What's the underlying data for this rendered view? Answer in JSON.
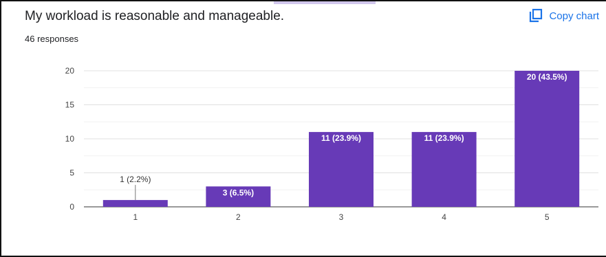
{
  "question": "My workload is reasonable and manageable.",
  "responses": "46 responses",
  "copy_chart": "Copy chart",
  "accent": "#673ab7",
  "chart_data": {
    "type": "bar",
    "categories": [
      "1",
      "2",
      "3",
      "4",
      "5"
    ],
    "values": [
      1,
      3,
      11,
      11,
      20
    ],
    "data_labels": [
      "1 (2.2%)",
      "3 (6.5%)",
      "11 (23.9%)",
      "11 (23.9%)",
      "20 (43.5%)"
    ],
    "yticks": [
      "0",
      "5",
      "10",
      "15",
      "20"
    ],
    "ylim": [
      0,
      20
    ],
    "grid": true,
    "bar_color": "#673ab7"
  }
}
